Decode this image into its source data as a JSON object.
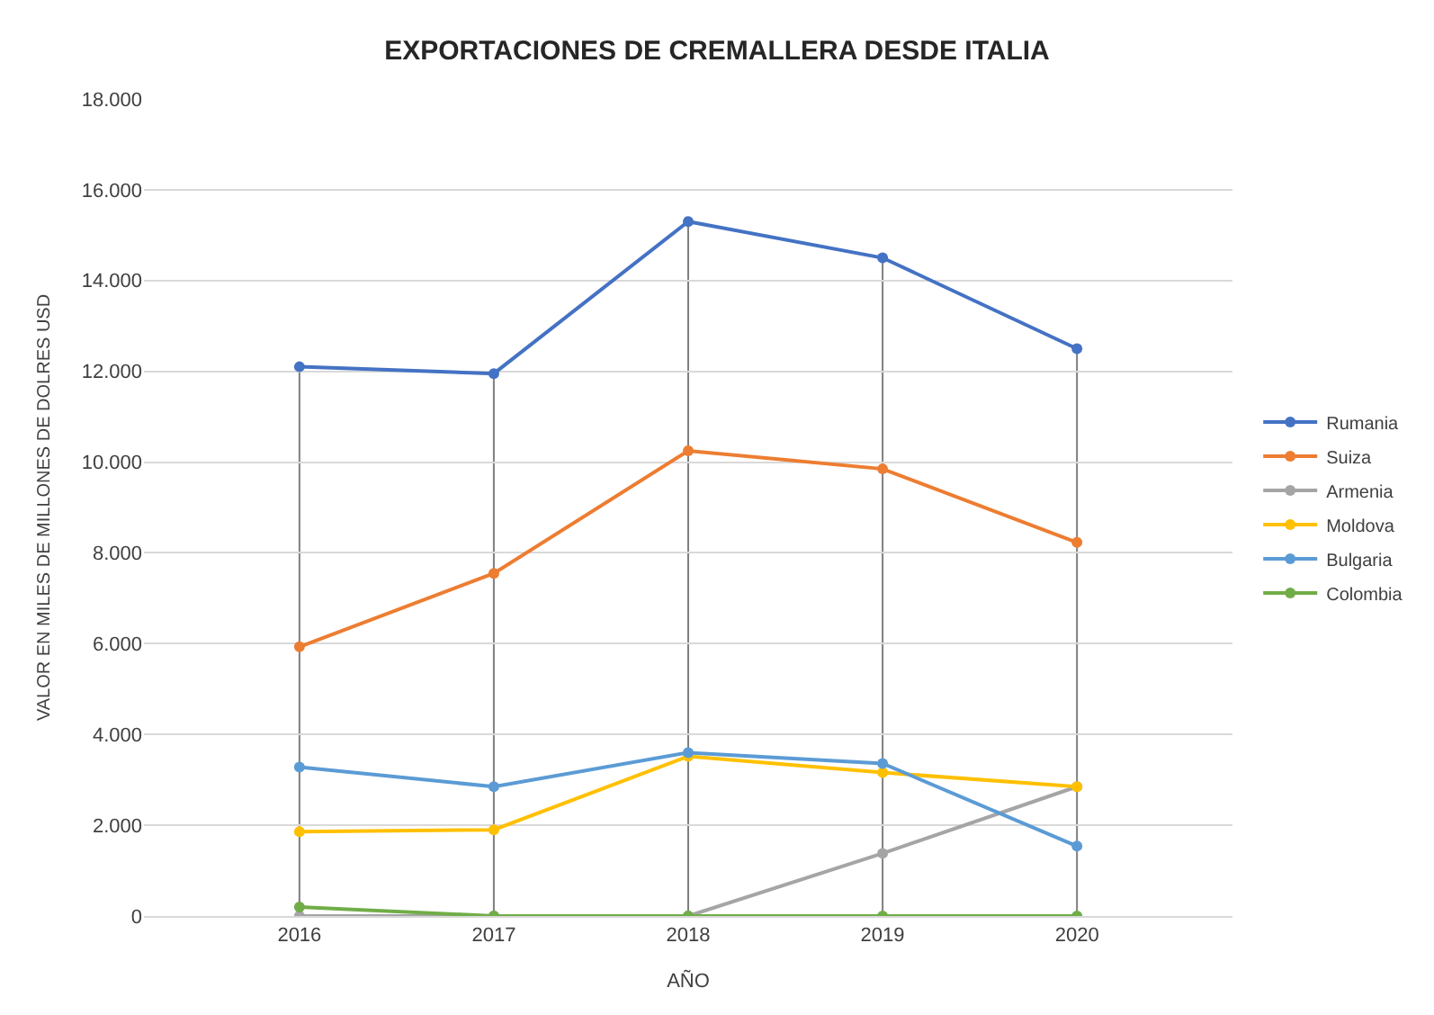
{
  "chart_data": {
    "type": "line",
    "title": "EXPORTACIONES DE CREMALLERA DESDE ITALIA",
    "xlabel": "AÑO",
    "ylabel": "VALOR EN MILES DE MILLONES DE DOLRES USD",
    "categories": [
      "2016",
      "2017",
      "2018",
      "2019",
      "2020"
    ],
    "series": [
      {
        "name": "Rumania",
        "color": "#4472c4",
        "values": [
          12100,
          11950,
          15300,
          14500,
          12500
        ]
      },
      {
        "name": "Suiza",
        "color": "#ed7d31",
        "values": [
          5930,
          7550,
          10250,
          9850,
          8230
        ]
      },
      {
        "name": "Armenia",
        "color": "#a5a5a5",
        "values": [
          0,
          0,
          0,
          1380,
          2850
        ]
      },
      {
        "name": "Moldova",
        "color": "#ffc000",
        "values": [
          1860,
          1900,
          3520,
          3160,
          2850
        ]
      },
      {
        "name": "Bulgaria",
        "color": "#5b9bd5",
        "values": [
          3280,
          2850,
          3600,
          3360,
          1540
        ]
      },
      {
        "name": "Colombia",
        "color": "#70ad47",
        "values": [
          200,
          0,
          0,
          0,
          0
        ]
      }
    ],
    "ylim": [
      0,
      18000
    ],
    "yticks": [
      {
        "value": 0,
        "label": "0"
      },
      {
        "value": 2000,
        "label": "2.000"
      },
      {
        "value": 4000,
        "label": "4.000"
      },
      {
        "value": 6000,
        "label": "6.000"
      },
      {
        "value": 8000,
        "label": "8.000"
      },
      {
        "value": 10000,
        "label": "10.000"
      },
      {
        "value": 12000,
        "label": "12.000"
      },
      {
        "value": 14000,
        "label": "14.000"
      },
      {
        "value": 16000,
        "label": "16.000"
      },
      {
        "value": 18000,
        "label": "18.000"
      }
    ],
    "ref_lines": [
      {
        "axis": "x",
        "value": "2016",
        "color": "#7f7f7f"
      },
      {
        "axis": "x",
        "value": "2017",
        "color": "#7f7f7f"
      },
      {
        "axis": "x",
        "value": "2018",
        "color": "#7f7f7f"
      },
      {
        "axis": "x",
        "value": "2019",
        "color": "#7f7f7f"
      },
      {
        "axis": "x",
        "value": "2020",
        "color": "#7f7f7f"
      }
    ],
    "grid": "y",
    "legend": "right",
    "marker": "circle",
    "line_style": "solid"
  }
}
